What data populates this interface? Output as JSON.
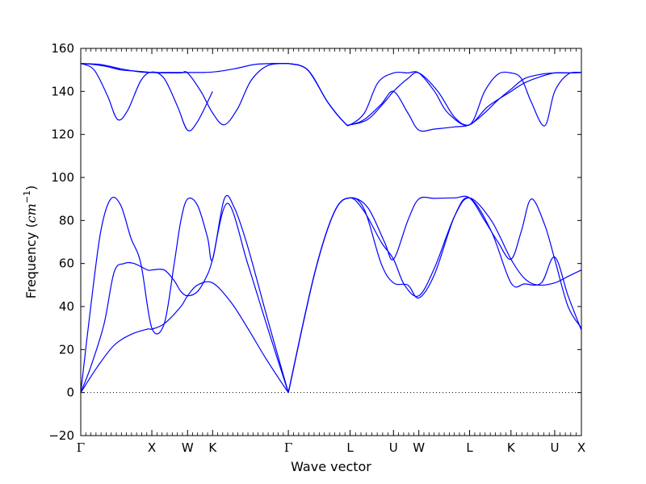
{
  "chart_data": {
    "type": "line",
    "title": "",
    "xlabel": "Wave vector",
    "ylabel": "Frequency (cm⁻¹)",
    "ylabel_text": "Frequency (",
    "ylabel_unit": "cm",
    "ylabel_exp": "−1",
    "ylabel_close": ")",
    "ylim": [
      -20,
      160
    ],
    "yticks": [
      -20,
      0,
      20,
      40,
      60,
      80,
      100,
      120,
      140,
      160
    ],
    "ytick_labels": [
      "−20",
      "0",
      "20",
      "40",
      "60",
      "80",
      "100",
      "120",
      "140",
      "160"
    ],
    "xlim": [
      0,
      15.0
    ],
    "high_symmetry_points": [
      {
        "label": "Γ",
        "x": 0.0
      },
      {
        "label": "X",
        "x": 2.13
      },
      {
        "label": "W",
        "x": 3.2
      },
      {
        "label": "K",
        "x": 3.95
      },
      {
        "label": "Γ",
        "x": 6.22
      },
      {
        "label": "L",
        "x": 8.07
      },
      {
        "label": "U",
        "x": 9.37
      },
      {
        "label": "W",
        "x": 10.13
      },
      {
        "label": "L",
        "x": 11.65
      },
      {
        "label": "K",
        "x": 12.89
      },
      {
        "label": "U",
        "x": 14.2
      },
      {
        "label": "X",
        "x": 15.0
      }
    ],
    "zero_line": true,
    "grid": false,
    "line_color": "#0000ff",
    "series": [
      {
        "x": [
          0.0,
          0.5,
          1.0,
          1.5,
          2.0,
          2.13,
          2.5,
          3.0,
          3.2,
          3.5,
          3.95,
          4.5,
          5.0,
          5.5,
          6.0,
          6.22
        ],
        "values": [
          0,
          12,
          22,
          27,
          29.5,
          29.5,
          32,
          40,
          45,
          50,
          51,
          42,
          30,
          17,
          5,
          0
        ]
      },
      {
        "x": [
          0.0,
          0.3,
          0.7,
          1.0,
          1.3,
          1.6,
          2.0,
          2.13,
          2.5,
          2.8,
          3.0,
          3.2,
          3.5,
          3.8,
          3.95,
          4.4,
          5.0,
          5.6,
          6.22
        ],
        "values": [
          0,
          12,
          32,
          56,
          60,
          60,
          57,
          57,
          57,
          52,
          47,
          45,
          47,
          55,
          62,
          88,
          60,
          30,
          0
        ]
      },
      {
        "x": [
          0.0,
          0.3,
          0.6,
          0.9,
          1.2,
          1.5,
          1.8,
          2.13,
          2.5,
          2.8,
          3.0,
          3.2,
          3.5,
          3.8,
          3.95,
          4.3,
          4.6,
          5.0,
          5.6,
          6.22
        ],
        "values": [
          0,
          40,
          75,
          90,
          87,
          72,
          60,
          30,
          32,
          60,
          80,
          90,
          87,
          72,
          62,
          90,
          86,
          68,
          34,
          0
        ]
      },
      {
        "x": [
          6.22,
          7.0,
          7.6,
          8.07,
          8.5,
          9.0,
          9.37,
          9.8,
          10.13,
          10.6,
          11.2,
          11.65,
          12.3,
          12.89,
          13.3,
          13.8,
          14.2,
          14.6,
          15.0
        ],
        "values": [
          0,
          55,
          84,
          90.5,
          85,
          60,
          51,
          50,
          44,
          55,
          82,
          90.5,
          75,
          51,
          50.5,
          51,
          63,
          45,
          29
        ]
      },
      {
        "x": [
          6.22,
          7.0,
          7.6,
          8.07,
          8.5,
          9.0,
          9.37,
          9.7,
          10.13,
          10.6,
          11.2,
          11.65,
          12.3,
          12.89,
          13.3,
          13.7,
          14.2,
          14.6,
          15.0
        ],
        "values": [
          0,
          55,
          84,
          90.5,
          84,
          70,
          62,
          50,
          45,
          58,
          82,
          90.5,
          80,
          62,
          53,
          50,
          51,
          54,
          57
        ]
      },
      {
        "x": [
          6.22,
          7.0,
          7.6,
          8.07,
          8.6,
          9.1,
          9.37,
          9.8,
          10.13,
          10.6,
          11.2,
          11.65,
          12.1,
          12.5,
          12.89,
          13.2,
          13.5,
          13.9,
          14.2,
          14.6,
          15.0
        ],
        "values": [
          0,
          55,
          84,
          90.5,
          86,
          70,
          62,
          80,
          90,
          90.3,
          90.5,
          90.5,
          80,
          70,
          62,
          75,
          90,
          78,
          62,
          40,
          30
        ]
      },
      {
        "x": [
          0.0,
          0.6,
          1.2,
          1.8,
          2.13,
          2.6,
          3.2,
          3.95,
          4.6,
          5.2,
          5.8,
          6.22
        ],
        "values": [
          153,
          152.5,
          150.5,
          149,
          148.8,
          148.8,
          148.8,
          149,
          150.5,
          152.5,
          153,
          153
        ]
      },
      {
        "x": [
          0.0,
          0.4,
          0.8,
          1.1,
          1.4,
          1.8,
          2.13,
          2.5,
          2.9,
          3.2,
          3.5,
          3.95
        ],
        "values": [
          153,
          150,
          138,
          127,
          131,
          145,
          149,
          146,
          133,
          122,
          126,
          140
        ]
      },
      {
        "x": [
          0.0,
          0.4,
          0.8,
          1.2,
          1.6,
          2.0,
          2.13,
          2.6,
          3.0,
          3.2,
          3.6,
          3.95,
          4.3,
          4.7,
          5.1,
          5.6,
          6.22
        ],
        "values": [
          153,
          152.5,
          151.5,
          150,
          149.5,
          149,
          148.8,
          148.6,
          148.6,
          148.6,
          140,
          130,
          124.5,
          132,
          145,
          152,
          153
        ]
      },
      {
        "x": [
          6.22,
          6.8,
          7.4,
          7.9,
          8.07,
          8.5,
          9.0,
          9.37,
          9.8,
          10.13,
          10.6,
          11.2,
          11.65,
          12.1,
          12.5,
          12.89,
          13.3,
          13.8,
          14.2,
          14.6,
          15.0
        ],
        "values": [
          153,
          150,
          135,
          125.5,
          124.5,
          127,
          134,
          140,
          130,
          122,
          122.5,
          123.5,
          124.5,
          130,
          136,
          141,
          146,
          148,
          148.6,
          148.6,
          148.8
        ]
      },
      {
        "x": [
          6.22,
          6.8,
          7.4,
          7.9,
          8.07,
          8.5,
          8.9,
          9.37,
          9.8,
          10.13,
          10.6,
          11.0,
          11.65,
          12.1,
          12.5,
          12.89,
          13.2,
          13.5,
          13.9,
          14.2,
          14.6,
          15.0
        ],
        "values": [
          153,
          150,
          135,
          125.5,
          124.5,
          130,
          144,
          148.6,
          148.6,
          148.6,
          140,
          130,
          124.5,
          140,
          148,
          148.6,
          146,
          135,
          124,
          140,
          148,
          148.8
        ]
      },
      {
        "x": [
          6.22,
          6.8,
          7.4,
          7.9,
          8.07,
          8.6,
          9.1,
          9.37,
          9.8,
          10.13,
          10.7,
          11.2,
          11.65,
          12.2,
          12.89,
          13.3,
          13.8,
          14.2,
          14.6,
          15.0
        ],
        "values": [
          153,
          150,
          135,
          125.5,
          124.5,
          127,
          135,
          140,
          146,
          148.6,
          140,
          128,
          124.5,
          133,
          140,
          144,
          147,
          148.6,
          148.6,
          148.8
        ]
      }
    ]
  }
}
